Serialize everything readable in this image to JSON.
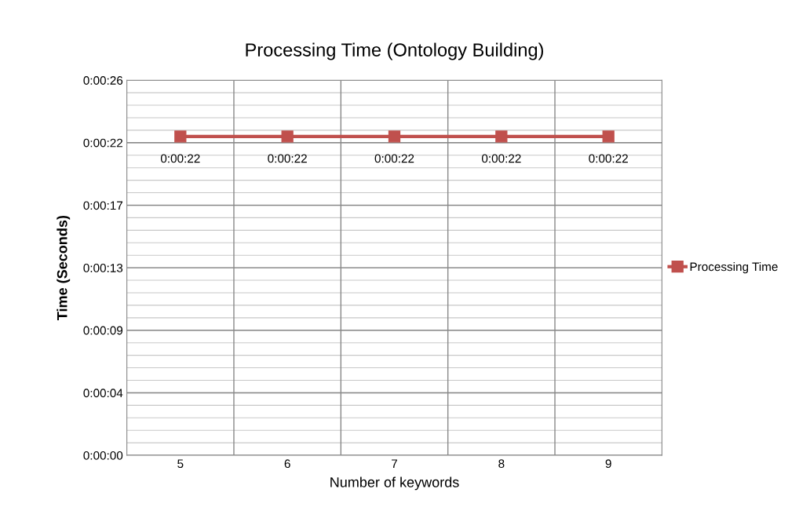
{
  "chart_data": {
    "type": "line",
    "title": "Processing Time (Ontology Building)",
    "xlabel": "Number of keywords",
    "ylabel": "Time (Seconds)",
    "categories": [
      "5",
      "6",
      "7",
      "8",
      "9"
    ],
    "series": [
      {
        "name": "Processing Time",
        "color": "#c0504d",
        "values": [
          22.1,
          22.1,
          22.1,
          22.1,
          22.1
        ],
        "value_labels": [
          "0:00:22",
          "0:00:22",
          "0:00:22",
          "0:00:22",
          "0:00:22"
        ]
      }
    ],
    "ylim": [
      0,
      26
    ],
    "yticks": [
      {
        "value": 0,
        "label": "0:00:00"
      },
      {
        "value": 4.33,
        "label": "0:00:04"
      },
      {
        "value": 8.67,
        "label": "0:00:09"
      },
      {
        "value": 13,
        "label": "0:00:13"
      },
      {
        "value": 17.33,
        "label": "0:00:17"
      },
      {
        "value": 21.67,
        "label": "0:00:22"
      },
      {
        "value": 26,
        "label": "0:00:26"
      }
    ],
    "grid": true,
    "legend": "right",
    "marker": "square",
    "line_style": "solid"
  }
}
